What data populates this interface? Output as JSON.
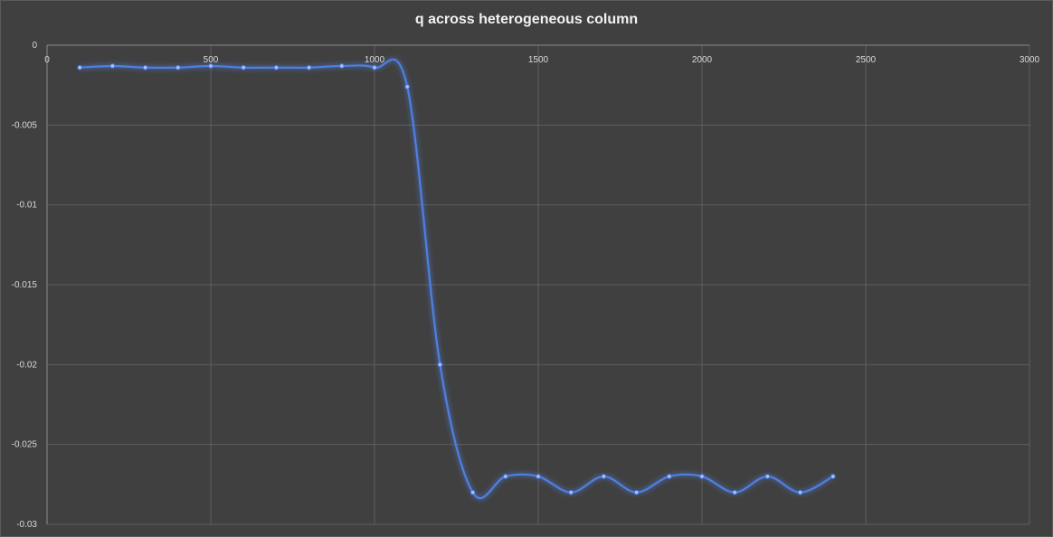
{
  "chart_data": {
    "type": "line",
    "title": "q across heterogeneous column",
    "xlabel": "",
    "ylabel": "",
    "xlim": [
      0,
      3000
    ],
    "ylim": [
      -0.03,
      0
    ],
    "x_ticks": [
      0,
      500,
      1000,
      1500,
      2000,
      2500,
      3000
    ],
    "y_ticks": [
      0,
      -0.005,
      -0.01,
      -0.015,
      -0.02,
      -0.025,
      -0.03
    ],
    "x_tick_labels": [
      "0",
      "500",
      "1000",
      "1500",
      "2000",
      "2500",
      "3000"
    ],
    "y_tick_labels": [
      "0",
      "-0.005",
      "-0.01",
      "-0.015",
      "-0.02",
      "-0.025",
      "-0.03"
    ],
    "x_axis_position": "top",
    "grid": true,
    "smooth": true,
    "series": [
      {
        "color": "#4f7fe0",
        "x": [
          100,
          200,
          300,
          400,
          500,
          600,
          700,
          800,
          900,
          1000,
          1100,
          1200,
          1300,
          1400,
          1500,
          1600,
          1700,
          1800,
          1900,
          2000,
          2100,
          2200,
          2300,
          2400
        ],
        "y": [
          -0.0014,
          -0.0013,
          -0.0014,
          -0.0014,
          -0.0013,
          -0.0014,
          -0.0014,
          -0.0014,
          -0.0013,
          -0.0014,
          -0.0026,
          -0.02,
          -0.028,
          -0.027,
          -0.027,
          -0.028,
          -0.027,
          -0.028,
          -0.027,
          -0.027,
          -0.028,
          -0.027,
          -0.028,
          -0.027
        ]
      }
    ]
  }
}
